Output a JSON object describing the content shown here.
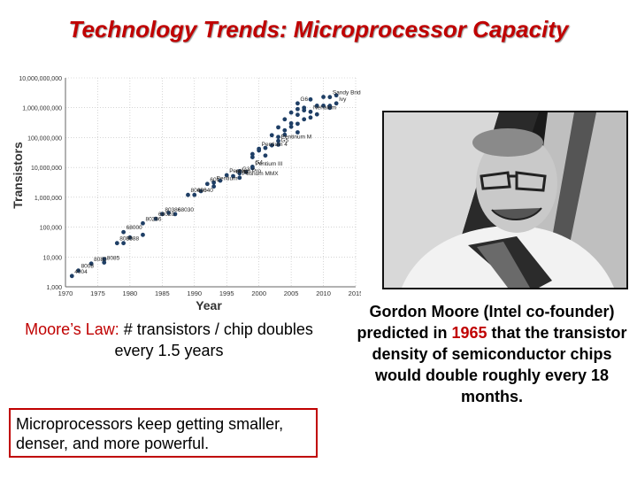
{
  "slide": {
    "title": "Technology Trends: Microprocessor Capacity",
    "moore_law_label": "Moore’s Law:",
    "moore_law_rest": "  # transistors / chip doubles every 1.5 years",
    "caption_part1": "Gordon Moore (Intel co-founder) predicted in ",
    "caption_year": "1965",
    "caption_part2": " that the transistor density of semiconductor chips would double roughly every 18 months.",
    "box_text": "Microprocessors keep getting smaller, denser, and more powerful."
  },
  "chart_data": {
    "type": "scatter",
    "xlabel": "Year",
    "ylabel": "Transistors",
    "xlim": [
      1970,
      2015
    ],
    "ylim": [
      1000,
      10000000000
    ],
    "yscale": "log",
    "x_ticks": [
      1970,
      1975,
      1980,
      1985,
      1990,
      1995,
      2000,
      2005,
      2010,
      2015
    ],
    "x_tick_labels": [
      "1970",
      "1975",
      "1980",
      "1985",
      "1990",
      "1995",
      "2000",
      "2005",
      "2010",
      "2015"
    ],
    "y_ticks": [
      1000,
      10000,
      100000,
      1000000,
      10000000,
      100000000,
      1000000000,
      10000000000
    ],
    "y_tick_labels": [
      "1,000",
      "10,000",
      "100,000",
      "1,000,000",
      "10,000,000",
      "100,000,000",
      "1,000,000,000",
      "10,000,000,000"
    ],
    "grid": true,
    "point_color": "#1f3f66",
    "labeled_points": [
      {
        "label": "4004",
        "x": 1971,
        "y": 2300
      },
      {
        "label": "8008",
        "x": 1972,
        "y": 3500
      },
      {
        "label": "8080",
        "x": 1974,
        "y": 6000
      },
      {
        "label": "8085",
        "x": 1976,
        "y": 6500
      },
      {
        "label": "8086",
        "x": 1978,
        "y": 29000
      },
      {
        "label": "8088",
        "x": 1979,
        "y": 29000
      },
      {
        "label": "68000",
        "x": 1979,
        "y": 68000
      },
      {
        "label": "80286",
        "x": 1982,
        "y": 134000
      },
      {
        "label": "68020",
        "x": 1984,
        "y": 190000
      },
      {
        "label": "80386",
        "x": 1985,
        "y": 275000
      },
      {
        "label": "68030",
        "x": 1987,
        "y": 273000
      },
      {
        "label": "80486",
        "x": 1989,
        "y": 1200000
      },
      {
        "label": "68040",
        "x": 1990,
        "y": 1200000
      },
      {
        "label": "601",
        "x": 1992,
        "y": 2800000
      },
      {
        "label": "Pentium",
        "x": 1993,
        "y": 3100000
      },
      {
        "label": "Pentium Pro",
        "x": 1995,
        "y": 5500000
      },
      {
        "label": "Petinum MMX",
        "x": 1997,
        "y": 4500000
      },
      {
        "label": "604e",
        "x": 1996,
        "y": 5100000
      },
      {
        "label": "G3",
        "x": 1997,
        "y": 6350000
      },
      {
        "label": "Pentium III",
        "x": 1999,
        "y": 9500000
      },
      {
        "label": "G4",
        "x": 1999,
        "y": 10500000
      },
      {
        "label": "Pentium 4",
        "x": 2000,
        "y": 42000000
      },
      {
        "label": "G5",
        "x": 2003,
        "y": 58000000
      },
      {
        "label": "Pentinum M",
        "x": 2003,
        "y": 77000000
      },
      {
        "label": "G6",
        "x": 2006,
        "y": 1400000000
      },
      {
        "label": "Nehalem",
        "x": 2008,
        "y": 731000000
      },
      {
        "label": "Sandy Bridge",
        "x": 2011,
        "y": 2270000000
      },
      {
        "label": "Ivy",
        "x": 2012,
        "y": 1400000000
      }
    ],
    "other_points": [
      {
        "x": 1976,
        "y": 8500
      },
      {
        "x": 1980,
        "y": 45000
      },
      {
        "x": 1982,
        "y": 55000
      },
      {
        "x": 1986,
        "y": 300000
      },
      {
        "x": 1991,
        "y": 1600000
      },
      {
        "x": 1993,
        "y": 2300000
      },
      {
        "x": 1994,
        "y": 3600000
      },
      {
        "x": 1997,
        "y": 7500000
      },
      {
        "x": 1998,
        "y": 7000000
      },
      {
        "x": 1999,
        "y": 22000000
      },
      {
        "x": 1999,
        "y": 28000000
      },
      {
        "x": 2000,
        "y": 37000000
      },
      {
        "x": 2001,
        "y": 45000000
      },
      {
        "x": 2001,
        "y": 25000000
      },
      {
        "x": 2002,
        "y": 55000000
      },
      {
        "x": 2002,
        "y": 120000000
      },
      {
        "x": 2003,
        "y": 105000000
      },
      {
        "x": 2003,
        "y": 220000000
      },
      {
        "x": 2004,
        "y": 125000000
      },
      {
        "x": 2004,
        "y": 175000000
      },
      {
        "x": 2004,
        "y": 410000000
      },
      {
        "x": 2005,
        "y": 230000000
      },
      {
        "x": 2005,
        "y": 300000000
      },
      {
        "x": 2005,
        "y": 690000000
      },
      {
        "x": 2006,
        "y": 290000000
      },
      {
        "x": 2006,
        "y": 150000000
      },
      {
        "x": 2006,
        "y": 580000000
      },
      {
        "x": 2006,
        "y": 900000000
      },
      {
        "x": 2007,
        "y": 410000000
      },
      {
        "x": 2007,
        "y": 820000000
      },
      {
        "x": 2007,
        "y": 1000000000
      },
      {
        "x": 2008,
        "y": 470000000
      },
      {
        "x": 2008,
        "y": 1900000000
      },
      {
        "x": 2009,
        "y": 600000000
      },
      {
        "x": 2009,
        "y": 1170000000
      },
      {
        "x": 2010,
        "y": 1170000000
      },
      {
        "x": 2010,
        "y": 2300000000
      },
      {
        "x": 2011,
        "y": 995000000
      },
      {
        "x": 2011,
        "y": 1160000000
      },
      {
        "x": 2012,
        "y": 2600000000
      }
    ]
  }
}
